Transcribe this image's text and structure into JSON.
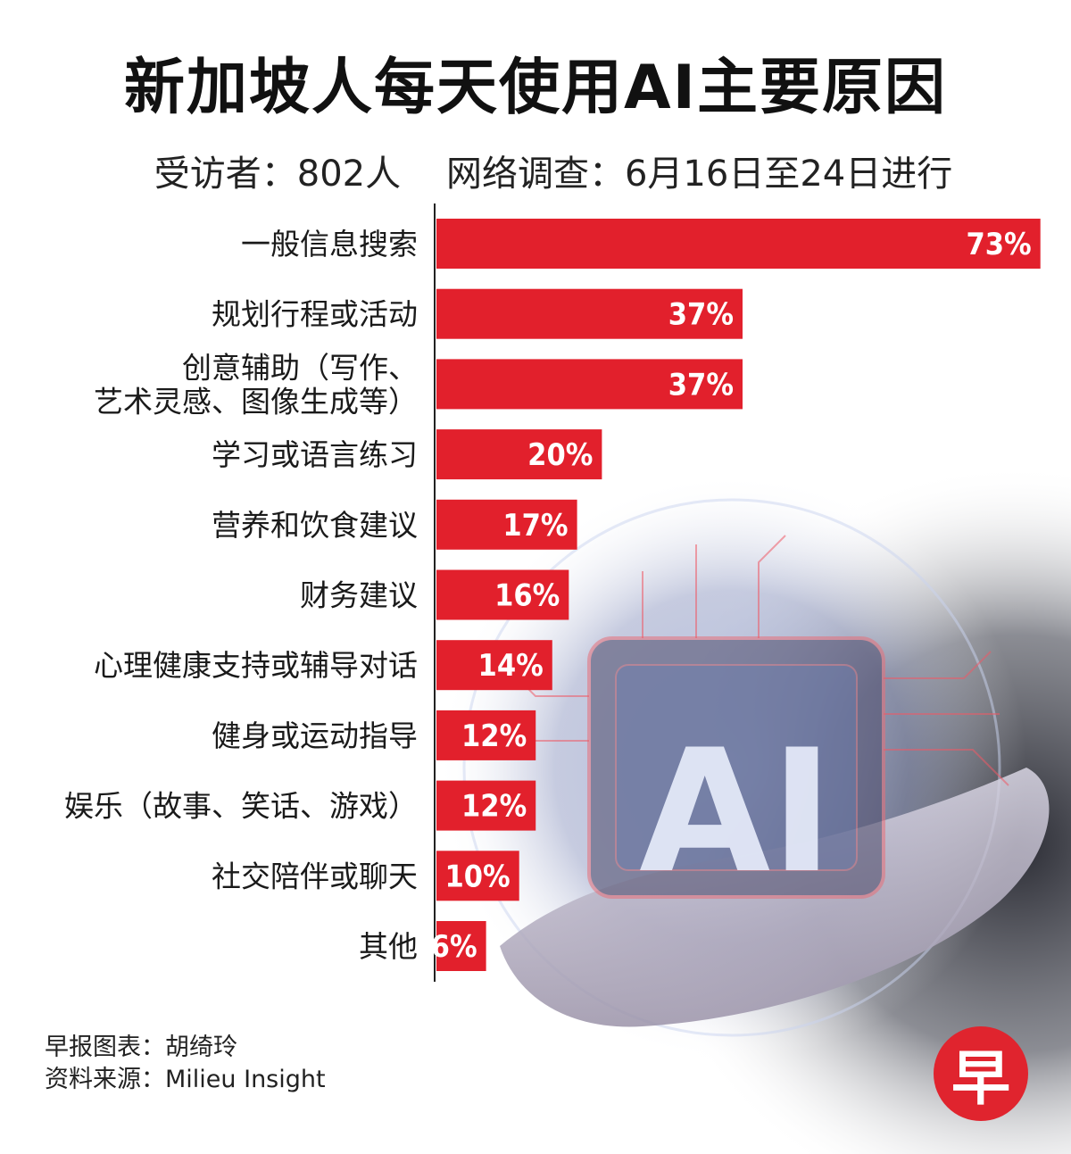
{
  "header": {
    "title": "新加坡人每天使用AI主要原因",
    "subtitle": "受访者：802人    网络调查：6月16日至24日进行"
  },
  "chart_data": {
    "type": "bar",
    "orientation": "horizontal",
    "categories": [
      [
        "一般信息搜索"
      ],
      [
        "规划行程或活动"
      ],
      [
        "创意辅助（写作、",
        "艺术灵感、图像生成等）"
      ],
      [
        "学习或语言练习"
      ],
      [
        "营养和饮食建议"
      ],
      [
        "财务建议"
      ],
      [
        "心理健康支持或辅导对话"
      ],
      [
        "健身或运动指导"
      ],
      [
        "娱乐（故事、笑话、游戏）"
      ],
      [
        "社交陪伴或聊天"
      ],
      [
        "其他"
      ]
    ],
    "values": [
      73,
      37,
      37,
      20,
      17,
      16,
      14,
      12,
      12,
      10,
      6
    ],
    "value_labels": [
      "73%",
      "37%",
      "37%",
      "20%",
      "17%",
      "16%",
      "14%",
      "12%",
      "12%",
      "10%",
      "6%"
    ],
    "unit": "%",
    "bar_color": "#e2202c",
    "grid": false,
    "legend": "none"
  },
  "footer": {
    "credit": "早报图表：胡绮玲",
    "source": "资料来源：Milieu Insight"
  },
  "logo": {
    "text": "早",
    "color": "#e0242e"
  },
  "background_image": {
    "text": "AI"
  }
}
